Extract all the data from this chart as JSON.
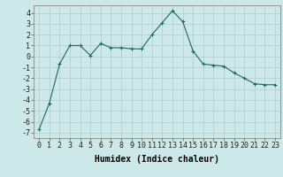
{
  "x": [
    0,
    1,
    2,
    3,
    4,
    5,
    6,
    7,
    8,
    9,
    10,
    11,
    12,
    13,
    14,
    15,
    16,
    17,
    18,
    19,
    20,
    21,
    22,
    23
  ],
  "y": [
    -6.7,
    -4.3,
    -0.7,
    1.0,
    1.0,
    0.1,
    1.2,
    0.8,
    0.8,
    0.7,
    0.7,
    2.0,
    3.1,
    4.2,
    3.2,
    0.5,
    -0.7,
    -0.8,
    -0.9,
    -1.5,
    -2.0,
    -2.5,
    -2.6,
    -2.6
  ],
  "line_color": "#1a6b5a",
  "marker": "+",
  "marker_color": "#1a6b5a",
  "bg_color": "#cce8e8",
  "grid_color": "#b0cccc",
  "xlabel": "Humidex (Indice chaleur)",
  "xlim": [
    -0.5,
    23.5
  ],
  "ylim": [
    -7.5,
    4.7
  ],
  "yticks": [
    -7,
    -6,
    -5,
    -4,
    -3,
    -2,
    -1,
    0,
    1,
    2,
    3,
    4
  ],
  "xticks": [
    0,
    1,
    2,
    3,
    4,
    5,
    6,
    7,
    8,
    9,
    10,
    11,
    12,
    13,
    14,
    15,
    16,
    17,
    18,
    19,
    20,
    21,
    22,
    23
  ],
  "xtick_labels": [
    "0",
    "1",
    "2",
    "3",
    "4",
    "5",
    "6",
    "7",
    "8",
    "9",
    "10",
    "11",
    "12",
    "13",
    "14",
    "15",
    "16",
    "17",
    "18",
    "19",
    "20",
    "21",
    "22",
    "23"
  ],
  "tick_fontsize": 6,
  "xlabel_fontsize": 7,
  "line_width": 0.8,
  "marker_size": 3
}
